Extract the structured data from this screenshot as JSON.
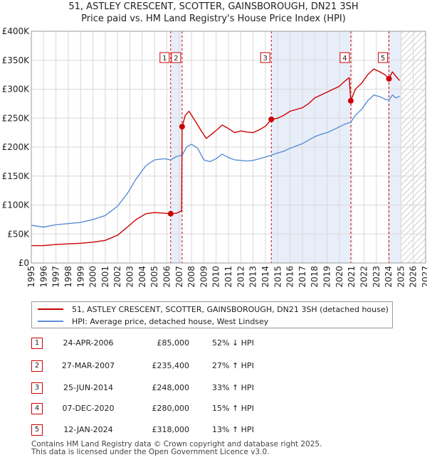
{
  "title_line1": "51, ASTLEY CRESCENT, SCOTTER, GAINSBOROUGH, DN21 3SH",
  "title_line2": "Price paid vs. HM Land Registry's House Price Index (HPI)",
  "legend": {
    "property_label": "51, ASTLEY CRESCENT, SCOTTER, GAINSBOROUGH, DN21 3SH (detached house)",
    "hpi_label": "HPI: Average price, detached house, West Lindsey"
  },
  "colors": {
    "property": "#cc0000",
    "hpi": "#5b8ed6",
    "shade": "#e8eef9",
    "grid": "#d8d8d8"
  },
  "sales": [
    {
      "num": "1",
      "date": "24-APR-2006",
      "price": "£85,000",
      "hpi": "52% ↓ HPI"
    },
    {
      "num": "2",
      "date": "27-MAR-2007",
      "price": "£235,400",
      "hpi": "27% ↑ HPI"
    },
    {
      "num": "3",
      "date": "25-JUN-2014",
      "price": "£248,000",
      "hpi": "33% ↑ HPI"
    },
    {
      "num": "4",
      "date": "07-DEC-2020",
      "price": "£280,000",
      "hpi": "15% ↑ HPI"
    },
    {
      "num": "5",
      "date": "12-JAN-2024",
      "price": "£318,000",
      "hpi": "13% ↑ HPI"
    }
  ],
  "footer": {
    "line1": "Contains HM Land Registry data © Crown copyright and database right 2025.",
    "line2": "This data is licensed under the Open Government Licence v3.0."
  },
  "chart_data": {
    "type": "line",
    "title": "Price paid vs. HM Land Registry's House Price Index (HPI)",
    "xlim": [
      1995,
      2027
    ],
    "ylim": [
      0,
      400000
    ],
    "x_ticks": [
      "1995",
      "1996",
      "1997",
      "1998",
      "1999",
      "2000",
      "2001",
      "2002",
      "2003",
      "2004",
      "2005",
      "2006",
      "2007",
      "2008",
      "2009",
      "2010",
      "2011",
      "2012",
      "2013",
      "2014",
      "2015",
      "2016",
      "2017",
      "2018",
      "2019",
      "2020",
      "2021",
      "2022",
      "2023",
      "2024",
      "2025",
      "2026",
      "2027"
    ],
    "y_ticks": [
      {
        "value": 0,
        "label": "£0"
      },
      {
        "value": 50000,
        "label": "£50K"
      },
      {
        "value": 100000,
        "label": "£100K"
      },
      {
        "value": 150000,
        "label": "£150K"
      },
      {
        "value": 200000,
        "label": "£200K"
      },
      {
        "value": 250000,
        "label": "£250K"
      },
      {
        "value": 300000,
        "label": "£300K"
      },
      {
        "value": 350000,
        "label": "£350K"
      },
      {
        "value": 400000,
        "label": "£400K"
      }
    ],
    "shaded_ranges": [
      [
        2006.31,
        2007.24
      ],
      [
        2014.48,
        2020.93
      ],
      [
        2024.03,
        2025.0
      ]
    ],
    "hatch_from": 2025.0,
    "sale_markers": [
      {
        "num": "1",
        "x": 2006.31,
        "y": 85000
      },
      {
        "num": "2",
        "x": 2007.24,
        "y": 235400
      },
      {
        "num": "3",
        "x": 2014.48,
        "y": 248000
      },
      {
        "num": "4",
        "x": 2020.93,
        "y": 280000
      },
      {
        "num": "5",
        "x": 2024.03,
        "y": 318000
      }
    ],
    "series": [
      {
        "name": "51, ASTLEY CRESCENT, SCOTTER, GAINSBOROUGH, DN21 3SH (detached house)",
        "color": "#cc0000",
        "points": [
          [
            1995.0,
            30000
          ],
          [
            1996.0,
            30000
          ],
          [
            1997.0,
            32000
          ],
          [
            1998.0,
            33000
          ],
          [
            1999.0,
            34000
          ],
          [
            2000.0,
            36000
          ],
          [
            2001.0,
            39000
          ],
          [
            2002.0,
            48000
          ],
          [
            2002.8,
            62000
          ],
          [
            2003.5,
            75000
          ],
          [
            2004.3,
            85000
          ],
          [
            2005.0,
            87000
          ],
          [
            2005.8,
            86000
          ],
          [
            2006.31,
            85000
          ],
          [
            2006.8,
            86000
          ],
          [
            2007.2,
            90000
          ],
          [
            2007.24,
            235400
          ],
          [
            2007.5,
            255000
          ],
          [
            2007.8,
            262000
          ],
          [
            2008.3,
            245000
          ],
          [
            2008.8,
            228000
          ],
          [
            2009.2,
            215000
          ],
          [
            2009.8,
            225000
          ],
          [
            2010.5,
            238000
          ],
          [
            2011.0,
            232000
          ],
          [
            2011.5,
            225000
          ],
          [
            2012.0,
            228000
          ],
          [
            2012.5,
            226000
          ],
          [
            2013.0,
            225000
          ],
          [
            2013.5,
            230000
          ],
          [
            2014.0,
            236000
          ],
          [
            2014.48,
            248000
          ],
          [
            2015.0,
            250000
          ],
          [
            2015.5,
            255000
          ],
          [
            2016.0,
            262000
          ],
          [
            2016.5,
            265000
          ],
          [
            2017.0,
            268000
          ],
          [
            2017.5,
            275000
          ],
          [
            2018.0,
            285000
          ],
          [
            2018.5,
            290000
          ],
          [
            2019.0,
            295000
          ],
          [
            2019.5,
            300000
          ],
          [
            2020.0,
            305000
          ],
          [
            2020.5,
            315000
          ],
          [
            2020.8,
            320000
          ],
          [
            2020.93,
            280000
          ],
          [
            2021.3,
            300000
          ],
          [
            2021.8,
            310000
          ],
          [
            2022.3,
            325000
          ],
          [
            2022.8,
            335000
          ],
          [
            2023.3,
            330000
          ],
          [
            2023.7,
            325000
          ],
          [
            2024.03,
            318000
          ],
          [
            2024.3,
            330000
          ],
          [
            2024.6,
            322000
          ],
          [
            2024.9,
            315000
          ]
        ]
      },
      {
        "name": "HPI: Average price, detached house, West Lindsey",
        "color": "#5b8ed6",
        "points": [
          [
            1995.0,
            65000
          ],
          [
            1996.0,
            62000
          ],
          [
            1997.0,
            66000
          ],
          [
            1998.0,
            68000
          ],
          [
            1999.0,
            70000
          ],
          [
            2000.0,
            75000
          ],
          [
            2001.0,
            82000
          ],
          [
            2002.0,
            98000
          ],
          [
            2002.8,
            120000
          ],
          [
            2003.5,
            145000
          ],
          [
            2004.3,
            168000
          ],
          [
            2005.0,
            178000
          ],
          [
            2005.8,
            180000
          ],
          [
            2006.31,
            178000
          ],
          [
            2006.8,
            184000
          ],
          [
            2007.24,
            186000
          ],
          [
            2007.6,
            200000
          ],
          [
            2008.0,
            205000
          ],
          [
            2008.5,
            198000
          ],
          [
            2009.0,
            178000
          ],
          [
            2009.5,
            175000
          ],
          [
            2010.0,
            180000
          ],
          [
            2010.5,
            188000
          ],
          [
            2011.0,
            182000
          ],
          [
            2011.5,
            178000
          ],
          [
            2012.0,
            177000
          ],
          [
            2012.5,
            176000
          ],
          [
            2013.0,
            177000
          ],
          [
            2013.5,
            180000
          ],
          [
            2014.0,
            183000
          ],
          [
            2014.48,
            186000
          ],
          [
            2015.0,
            190000
          ],
          [
            2015.5,
            193000
          ],
          [
            2016.0,
            198000
          ],
          [
            2016.5,
            202000
          ],
          [
            2017.0,
            206000
          ],
          [
            2017.5,
            212000
          ],
          [
            2018.0,
            218000
          ],
          [
            2018.5,
            222000
          ],
          [
            2019.0,
            225000
          ],
          [
            2019.5,
            230000
          ],
          [
            2020.0,
            235000
          ],
          [
            2020.5,
            240000
          ],
          [
            2020.93,
            243000
          ],
          [
            2021.3,
            255000
          ],
          [
            2021.8,
            265000
          ],
          [
            2022.3,
            280000
          ],
          [
            2022.8,
            290000
          ],
          [
            2023.3,
            287000
          ],
          [
            2023.7,
            283000
          ],
          [
            2024.03,
            281000
          ],
          [
            2024.3,
            290000
          ],
          [
            2024.6,
            285000
          ],
          [
            2024.9,
            288000
          ]
        ]
      }
    ]
  }
}
